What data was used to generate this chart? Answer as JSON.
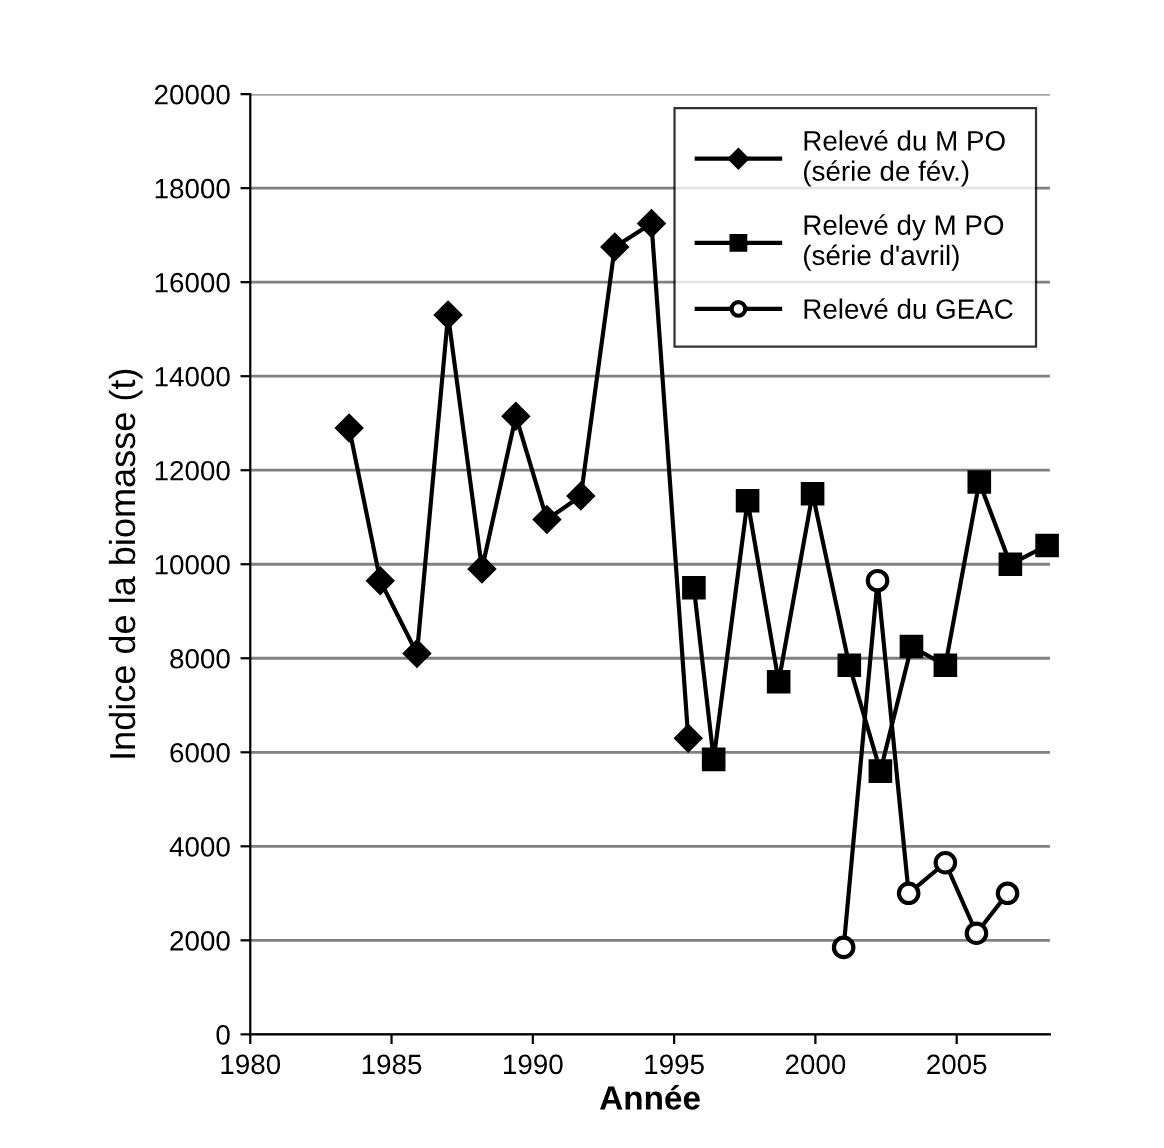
{
  "chart_data": {
    "type": "line",
    "xlabel": "Année",
    "ylabel": "Indice de la biomasse (t)",
    "xlim": [
      1980,
      2008.3
    ],
    "xticks": [
      1980,
      1985,
      1990,
      1995,
      2000,
      2005
    ],
    "ylim": [
      0,
      20000
    ],
    "yticks": [
      0,
      2000,
      4000,
      6000,
      8000,
      10000,
      12000,
      14000,
      16000,
      18000,
      20000
    ],
    "grid": "y",
    "legend": "top right",
    "line_style": "solid",
    "series": [
      {
        "name": "Relevé du M PO\n(série de fév.)",
        "color": "#000000",
        "marker": "diamond",
        "x": [
          1983.5,
          1984.6,
          1985.9,
          1987.0,
          1988.2,
          1989.4,
          1990.5,
          1991.7,
          1992.9,
          1994.2,
          1995.5
        ],
        "values": [
          12900,
          9650,
          8100,
          15300,
          9900,
          13150,
          10950,
          11450,
          16750,
          17250,
          6300
        ]
      },
      {
        "name": "Relevé dy M PO\n(série d'avril)",
        "color": "#000000",
        "marker": "square",
        "x": [
          1995.7,
          1996.4,
          1997.6,
          1998.7,
          1999.9,
          2001.2,
          2002.3,
          2003.4,
          2004.6,
          2005.8,
          2006.9,
          2008.2
        ],
        "values": [
          9500,
          5850,
          11350,
          7500,
          11500,
          7850,
          5600,
          8250,
          7850,
          11750,
          10000,
          10400
        ]
      },
      {
        "name": "Relevé du GEAC",
        "color": "#000000",
        "marker": "circle",
        "x": [
          2001.0,
          2002.2,
          2003.3,
          2004.6,
          2005.7,
          2006.8
        ],
        "values": [
          1850,
          9650,
          3000,
          3650,
          2150,
          3000
        ]
      }
    ]
  }
}
